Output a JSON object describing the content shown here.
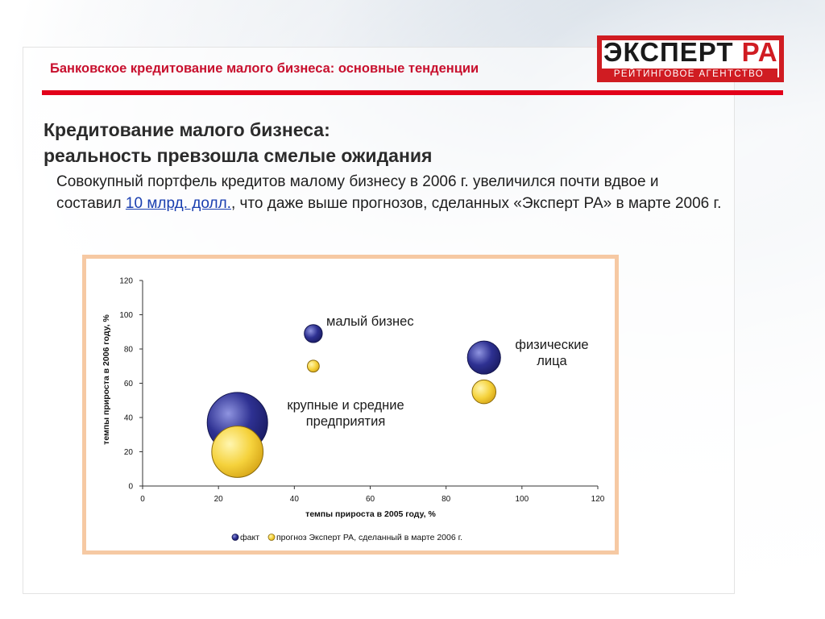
{
  "header": {
    "title": "Банковское кредитование малого бизнеса: основные тенденции",
    "logo_main": "ЭКСПЕРТ",
    "logo_accent": "РА",
    "logo_sub": "РЕЙТИНГОВОЕ АГЕНТСТВО"
  },
  "heading": {
    "line1": "Кредитование малого бизнеса:",
    "line2": "реальность превзошла смелые ожидания"
  },
  "body": {
    "text_before": "Совокупный портфель кредитов малому бизнесу в 2006 г. увеличился почти вдвое и составил ",
    "link": "10 млрд. долл.",
    "text_after": ", что даже выше прогнозов, сделанных «Эксперт РА» в марте 2006 г."
  },
  "colors": {
    "accent_red": "#e2001a",
    "fact": "#2e3192",
    "forecast": "#f5d23c",
    "chart_frame": "#f6c9a3"
  },
  "chart_data": {
    "type": "scatter",
    "xlabel": "темпы прироста в 2005 году, %",
    "ylabel": "темпы прироста в 2006 году, %",
    "xlim": [
      0,
      120
    ],
    "ylim": [
      0,
      120
    ],
    "x_ticks": [
      0,
      20,
      40,
      60,
      80,
      100,
      120
    ],
    "y_ticks": [
      0,
      20,
      40,
      60,
      80,
      100,
      120
    ],
    "grid": false,
    "legend_position": "bottom",
    "series": [
      {
        "name": "факт",
        "color": "#2e3192",
        "points": [
          {
            "x": 25,
            "y": 37,
            "size": 9
          },
          {
            "x": 45,
            "y": 89,
            "size": 0.8
          },
          {
            "x": 90,
            "y": 75,
            "size": 2.7
          }
        ]
      },
      {
        "name": "прогноз Эксперт РА, сделанный в марте 2006 г.",
        "color": "#f5d23c",
        "points": [
          {
            "x": 25,
            "y": 20,
            "size": 6.5
          },
          {
            "x": 45,
            "y": 70,
            "size": 0.35
          },
          {
            "x": 90,
            "y": 55,
            "size": 1.4
          }
        ]
      }
    ],
    "annotations": [
      {
        "lines": [
          "малый бизнес"
        ]
      },
      {
        "lines": [
          "физические",
          "лица"
        ]
      },
      {
        "lines": [
          "крупные и средние",
          "предприятия"
        ]
      }
    ]
  }
}
